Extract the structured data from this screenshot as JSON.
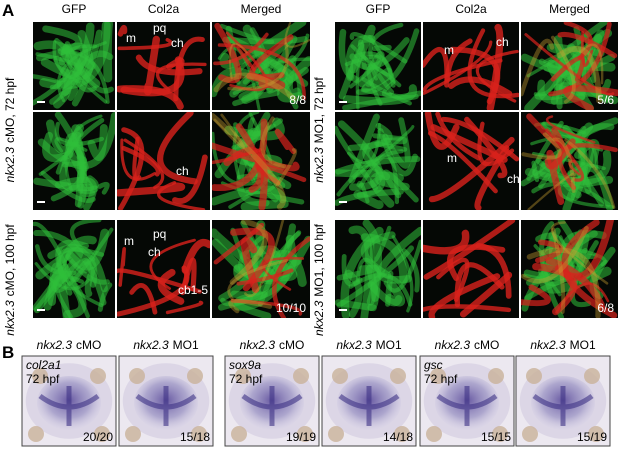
{
  "panel_a": {
    "label": "A",
    "groups": [
      {
        "columns": [
          "GFP",
          "Col2a",
          "Merged"
        ],
        "conditions": [
          {
            "gene": "nkx2.3",
            "treatment": "cMO, 72 hpf"
          },
          {
            "gene": "nkx2.3",
            "treatment": "cMO, 100 hpf"
          }
        ],
        "rows": [
          {
            "annotations": [
              "m",
              "pq",
              "ch"
            ],
            "count": "8/8"
          },
          {
            "annotations": [
              "ch"
            ]
          },
          {
            "annotations": [
              "m",
              "pq",
              "ch",
              "cb1-5"
            ],
            "count": "10/10"
          }
        ]
      },
      {
        "columns": [
          "GFP",
          "Col2a",
          "Merged"
        ],
        "conditions": [
          {
            "gene": "nkx2.3",
            "treatment": "MO1, 72 hpf"
          },
          {
            "gene": "nkx2.3",
            "treatment": "MO1, 100 hpf"
          }
        ],
        "rows": [
          {
            "annotations": [
              "m",
              "ch"
            ],
            "count": "5/6"
          },
          {
            "annotations": [
              "m",
              "ch"
            ]
          },
          {
            "count": "6/8"
          }
        ]
      }
    ]
  },
  "panel_b": {
    "label": "B",
    "groups": [
      {
        "probe": "col2a1",
        "stage": "72 hpf",
        "images": [
          {
            "gene": "nkx2.3",
            "treatment": "cMO",
            "count": "20/20"
          },
          {
            "gene": "nkx2.3",
            "treatment": "MO1",
            "count": "15/18"
          }
        ]
      },
      {
        "probe": "sox9a",
        "stage": "72 hpf",
        "images": [
          {
            "gene": "nkx2.3",
            "treatment": "cMO",
            "count": "19/19"
          },
          {
            "gene": "nkx2.3",
            "treatment": "MO1",
            "count": "14/18"
          }
        ]
      },
      {
        "probe": "gsc",
        "stage": "72 hpf",
        "images": [
          {
            "gene": "nkx2.3",
            "treatment": "cMO",
            "count": "15/15"
          },
          {
            "gene": "nkx2.3",
            "treatment": "MO1",
            "count": "15/19"
          }
        ]
      }
    ]
  }
}
